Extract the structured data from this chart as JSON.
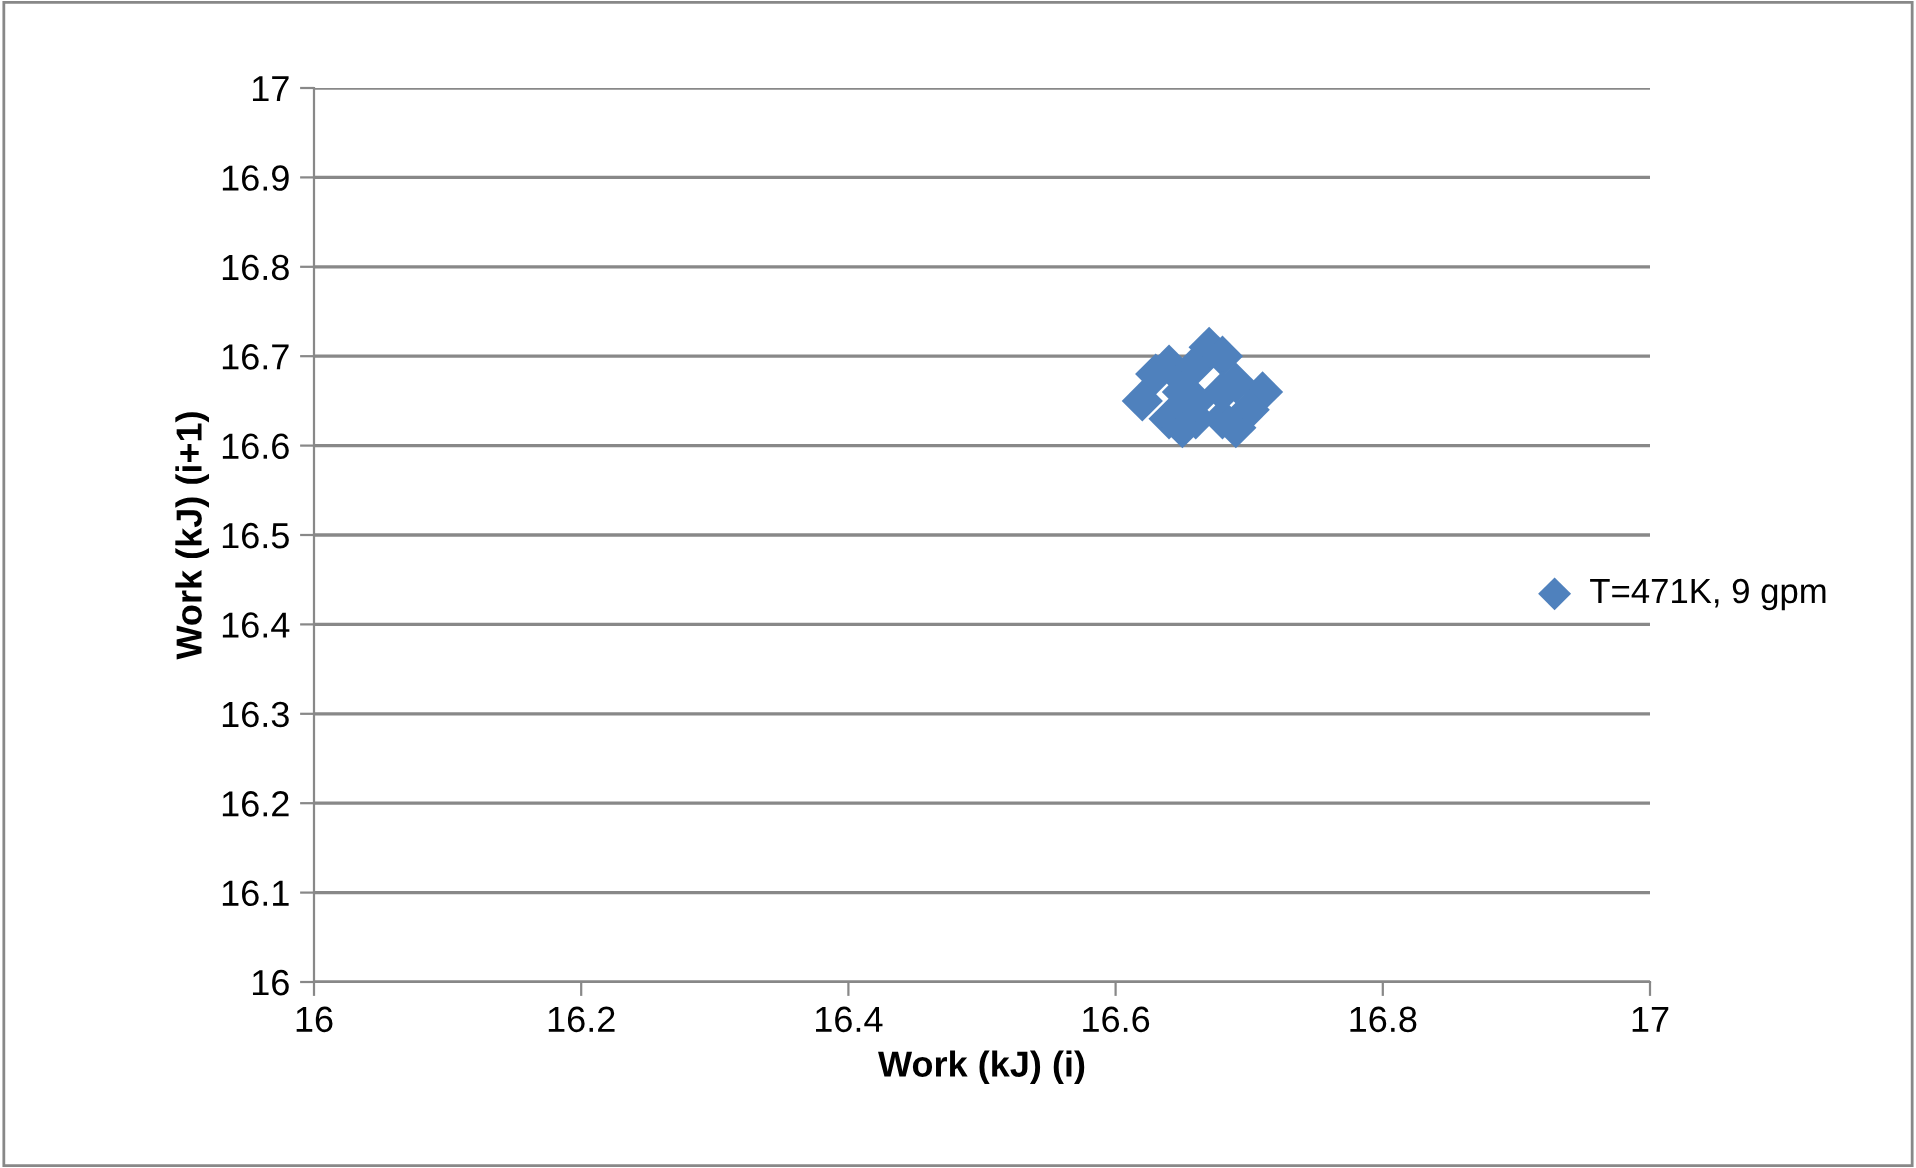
{
  "chart_data": {
    "type": "scatter",
    "xlabel": "Work (kJ) (i)",
    "ylabel": "Work (kJ) (i+1)",
    "xlim": [
      16,
      17
    ],
    "xticks": [
      16,
      16.2,
      16.4,
      16.6,
      16.8,
      17
    ],
    "ylim": [
      16,
      17
    ],
    "yticks": [
      16,
      16.1,
      16.2,
      16.3,
      16.4,
      16.5,
      16.6,
      16.7,
      16.8,
      16.9,
      17
    ],
    "grid": "y",
    "legend": "right",
    "marker": "diamond",
    "series": [
      {
        "name": "T=471K, 9 gpm",
        "color": "#4f81bd",
        "x": [
          16.62,
          16.63,
          16.64,
          16.64,
          16.65,
          16.66,
          16.67,
          16.68,
          16.71,
          16.7,
          16.69,
          16.68,
          16.66,
          16.65,
          16.68,
          16.69,
          16.66
        ],
        "values": [
          16.65,
          16.68,
          16.69,
          16.63,
          16.62,
          16.69,
          16.71,
          16.7,
          16.66,
          16.64,
          16.62,
          16.63,
          16.63,
          16.66,
          16.66,
          16.67,
          16.65
        ]
      }
    ]
  }
}
